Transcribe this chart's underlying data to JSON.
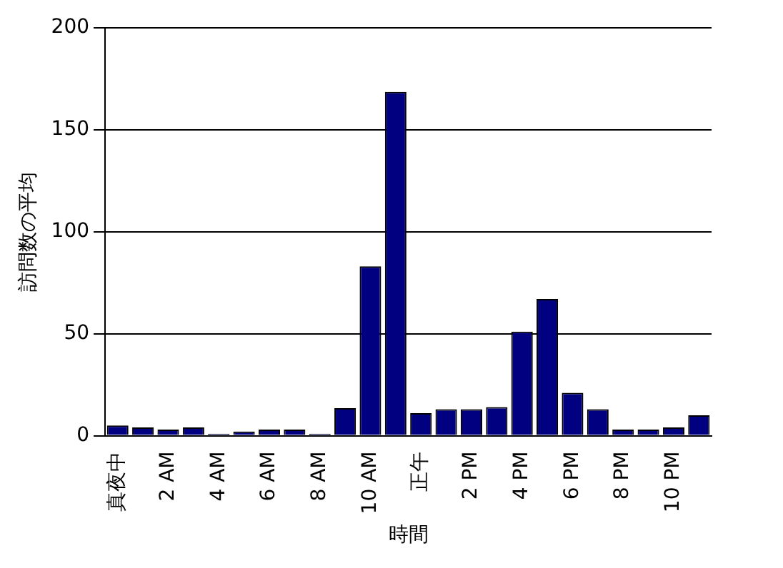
{
  "chart_data": {
    "type": "bar",
    "xlabel": "時間",
    "ylabel": "訪問数の平均",
    "categories": [
      "真夜中",
      null,
      "2 AM",
      null,
      "4 AM",
      null,
      "6 AM",
      null,
      "8 AM",
      null,
      "10 AM",
      null,
      "正午",
      null,
      "2 PM",
      null,
      "4 PM",
      null,
      "6 PM",
      null,
      "8 PM",
      null,
      "10 PM",
      null
    ],
    "values": [
      5,
      4,
      3,
      4,
      1,
      2,
      3,
      3,
      1,
      13.5,
      83,
      168.5,
      11,
      13,
      13,
      14,
      51,
      67,
      21,
      13,
      3,
      3,
      4,
      10
    ],
    "color": "#000080",
    "ylim": [
      0,
      200
    ],
    "yticks": [
      0,
      50,
      100,
      150,
      200
    ],
    "grid": "y"
  }
}
